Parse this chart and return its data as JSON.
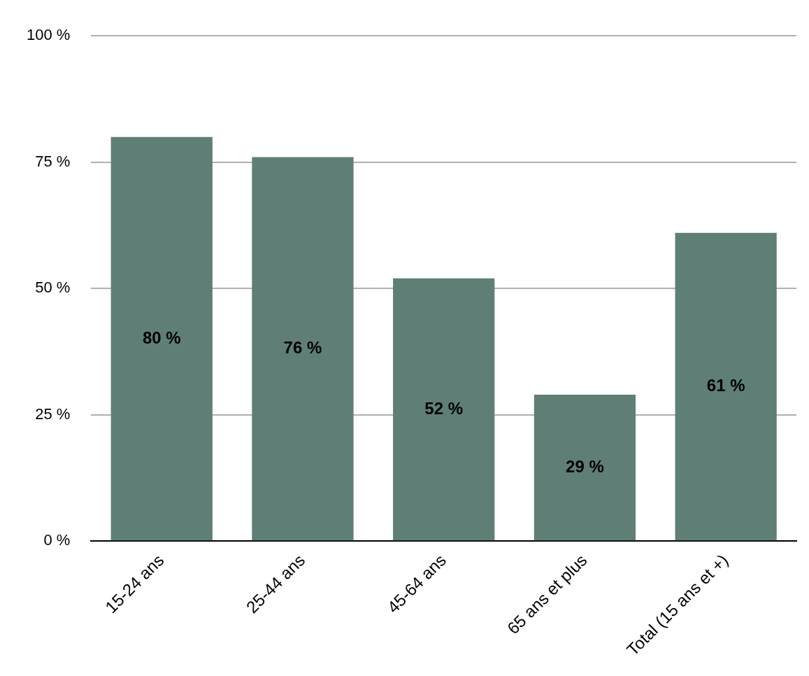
{
  "chart_data": {
    "type": "bar",
    "categories": [
      "15-24 ans",
      "25-44 ans",
      "45-64 ans",
      "65 ans et plus",
      "Total (15 ans et +)"
    ],
    "values": [
      80,
      76,
      52,
      29,
      61
    ],
    "value_labels": [
      "80 %",
      "76 %",
      "52 %",
      "29 %",
      "61 %"
    ],
    "color": "#5f7f76",
    "ylim": [
      0,
      100
    ],
    "yticks": [
      {
        "value": 0,
        "label": "0 %"
      },
      {
        "value": 25,
        "label": "25 %"
      },
      {
        "value": 50,
        "label": "50 %"
      },
      {
        "value": 75,
        "label": "75 %"
      },
      {
        "value": 100,
        "label": "100 %"
      }
    ],
    "grid": "y"
  }
}
